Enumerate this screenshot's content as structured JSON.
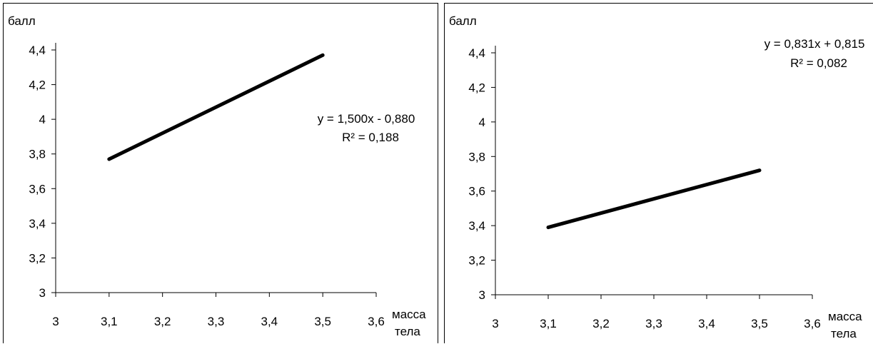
{
  "chart_data": [
    {
      "type": "line",
      "ylabel": "балл",
      "xlabel": [
        "масса",
        "тела"
      ],
      "xlim": [
        3,
        3.6
      ],
      "ylim": [
        3,
        4.4
      ],
      "x_ticks": [
        "3",
        "3,1",
        "3,2",
        "3,3",
        "3,4",
        "3,5",
        "3,6"
      ],
      "y_ticks": [
        "3",
        "3,2",
        "3,4",
        "3,6",
        "3,8",
        "4",
        "4,2",
        "4,4"
      ],
      "series": [
        {
          "x": [
            3.1,
            3.5
          ],
          "y": [
            3.77,
            4.37
          ]
        }
      ],
      "equation": "y = 1,500x - 0,880",
      "r2": "R² = 0,188",
      "line_color": "#000000"
    },
    {
      "type": "line",
      "ylabel": "балл",
      "xlabel": [
        "масса",
        "тела"
      ],
      "xlim": [
        3,
        3.6
      ],
      "ylim": [
        3,
        4.4
      ],
      "x_ticks": [
        "3",
        "3,1",
        "3,2",
        "3,3",
        "3,4",
        "3,5",
        "3,6"
      ],
      "y_ticks": [
        "3",
        "3,2",
        "3,4",
        "3,6",
        "3,8",
        "4",
        "4,2",
        "4,4"
      ],
      "series": [
        {
          "x": [
            3.1,
            3.5
          ],
          "y": [
            3.39,
            3.72
          ]
        }
      ],
      "equation": "y = 0,831x + 0,815",
      "r2": "R² = 0,082",
      "line_color": "#000000"
    }
  ]
}
